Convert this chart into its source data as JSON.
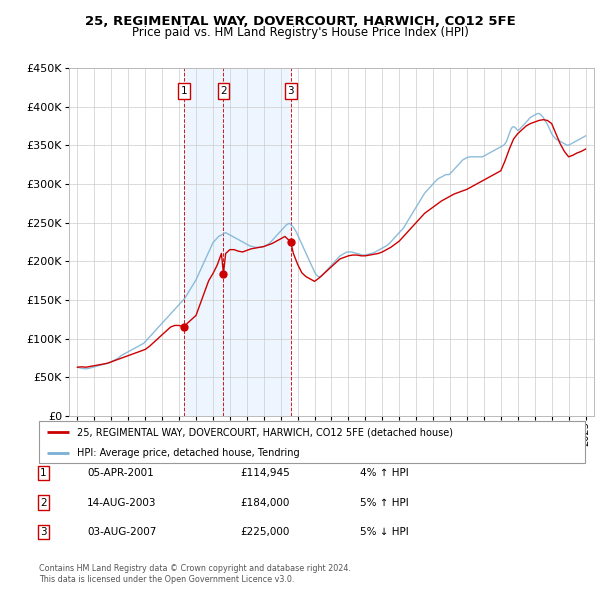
{
  "title": "25, REGIMENTAL WAY, DOVERCOURT, HARWICH, CO12 5FE",
  "subtitle": "Price paid vs. HM Land Registry's House Price Index (HPI)",
  "legend_line1": "25, REGIMENTAL WAY, DOVERCOURT, HARWICH, CO12 5FE (detached house)",
  "legend_line2": "HPI: Average price, detached house, Tendring",
  "transactions": [
    {
      "num": 1,
      "date": "05-APR-2001",
      "price": 114945,
      "change": "4% ↑ HPI",
      "year": 2001.27
    },
    {
      "num": 2,
      "date": "14-AUG-2003",
      "price": 184000,
      "change": "5% ↑ HPI",
      "year": 2003.62
    },
    {
      "num": 3,
      "date": "03-AUG-2007",
      "price": 225000,
      "change": "5% ↓ HPI",
      "year": 2007.59
    }
  ],
  "footer1": "Contains HM Land Registry data © Crown copyright and database right 2024.",
  "footer2": "This data is licensed under the Open Government Licence v3.0.",
  "red_color": "#cc0000",
  "blue_color": "#7ab0d4",
  "dot_color": "#cc0000",
  "shade_color": "#ddeeff",
  "background_color": "#ffffff",
  "grid_color": "#cccccc",
  "ylim": [
    0,
    450000
  ],
  "xlim": [
    1994.5,
    2025.5
  ],
  "hpi_data_years": [
    1995,
    1995.083,
    1995.167,
    1995.25,
    1995.333,
    1995.417,
    1995.5,
    1995.583,
    1995.667,
    1995.75,
    1995.833,
    1995.917,
    1996,
    1996.083,
    1996.167,
    1996.25,
    1996.333,
    1996.417,
    1996.5,
    1996.583,
    1996.667,
    1996.75,
    1996.833,
    1996.917,
    1997,
    1997.083,
    1997.167,
    1997.25,
    1997.333,
    1997.417,
    1997.5,
    1997.583,
    1997.667,
    1997.75,
    1997.833,
    1997.917,
    1998,
    1998.083,
    1998.167,
    1998.25,
    1998.333,
    1998.417,
    1998.5,
    1998.583,
    1998.667,
    1998.75,
    1998.833,
    1998.917,
    1999,
    1999.083,
    1999.167,
    1999.25,
    1999.333,
    1999.417,
    1999.5,
    1999.583,
    1999.667,
    1999.75,
    1999.833,
    1999.917,
    2000,
    2000.083,
    2000.167,
    2000.25,
    2000.333,
    2000.417,
    2000.5,
    2000.583,
    2000.667,
    2000.75,
    2000.833,
    2000.917,
    2001,
    2001.083,
    2001.167,
    2001.25,
    2001.333,
    2001.417,
    2001.5,
    2001.583,
    2001.667,
    2001.75,
    2001.833,
    2001.917,
    2002,
    2002.083,
    2002.167,
    2002.25,
    2002.333,
    2002.417,
    2002.5,
    2002.583,
    2002.667,
    2002.75,
    2002.833,
    2002.917,
    2003,
    2003.083,
    2003.167,
    2003.25,
    2003.333,
    2003.417,
    2003.5,
    2003.583,
    2003.667,
    2003.75,
    2003.833,
    2003.917,
    2004,
    2004.083,
    2004.167,
    2004.25,
    2004.333,
    2004.417,
    2004.5,
    2004.583,
    2004.667,
    2004.75,
    2004.833,
    2004.917,
    2005,
    2005.083,
    2005.167,
    2005.25,
    2005.333,
    2005.417,
    2005.5,
    2005.583,
    2005.667,
    2005.75,
    2005.833,
    2005.917,
    2006,
    2006.083,
    2006.167,
    2006.25,
    2006.333,
    2006.417,
    2006.5,
    2006.583,
    2006.667,
    2006.75,
    2006.833,
    2006.917,
    2007,
    2007.083,
    2007.167,
    2007.25,
    2007.333,
    2007.417,
    2007.5,
    2007.583,
    2007.667,
    2007.75,
    2007.833,
    2007.917,
    2008,
    2008.083,
    2008.167,
    2008.25,
    2008.333,
    2008.417,
    2008.5,
    2008.583,
    2008.667,
    2008.75,
    2008.833,
    2008.917,
    2009,
    2009.083,
    2009.167,
    2009.25,
    2009.333,
    2009.417,
    2009.5,
    2009.583,
    2009.667,
    2009.75,
    2009.833,
    2009.917,
    2010,
    2010.083,
    2010.167,
    2010.25,
    2010.333,
    2010.417,
    2010.5,
    2010.583,
    2010.667,
    2010.75,
    2010.833,
    2010.917,
    2011,
    2011.083,
    2011.167,
    2011.25,
    2011.333,
    2011.417,
    2011.5,
    2011.583,
    2011.667,
    2011.75,
    2011.833,
    2011.917,
    2012,
    2012.083,
    2012.167,
    2012.25,
    2012.333,
    2012.417,
    2012.5,
    2012.583,
    2012.667,
    2012.75,
    2012.833,
    2012.917,
    2013,
    2013.083,
    2013.167,
    2013.25,
    2013.333,
    2013.417,
    2013.5,
    2013.583,
    2013.667,
    2013.75,
    2013.833,
    2013.917,
    2014,
    2014.083,
    2014.167,
    2014.25,
    2014.333,
    2014.417,
    2014.5,
    2014.583,
    2014.667,
    2014.75,
    2014.833,
    2014.917,
    2015,
    2015.083,
    2015.167,
    2015.25,
    2015.333,
    2015.417,
    2015.5,
    2015.583,
    2015.667,
    2015.75,
    2015.833,
    2015.917,
    2016,
    2016.083,
    2016.167,
    2016.25,
    2016.333,
    2016.417,
    2016.5,
    2016.583,
    2016.667,
    2016.75,
    2016.833,
    2016.917,
    2017,
    2017.083,
    2017.167,
    2017.25,
    2017.333,
    2017.417,
    2017.5,
    2017.583,
    2017.667,
    2017.75,
    2017.833,
    2017.917,
    2018,
    2018.083,
    2018.167,
    2018.25,
    2018.333,
    2018.417,
    2018.5,
    2018.583,
    2018.667,
    2018.75,
    2018.833,
    2018.917,
    2019,
    2019.083,
    2019.167,
    2019.25,
    2019.333,
    2019.417,
    2019.5,
    2019.583,
    2019.667,
    2019.75,
    2019.833,
    2019.917,
    2020,
    2020.083,
    2020.167,
    2020.25,
    2020.333,
    2020.417,
    2020.5,
    2020.583,
    2020.667,
    2020.75,
    2020.833,
    2020.917,
    2021,
    2021.083,
    2021.167,
    2021.25,
    2021.333,
    2021.417,
    2021.5,
    2021.583,
    2021.667,
    2021.75,
    2021.833,
    2021.917,
    2022,
    2022.083,
    2022.167,
    2022.25,
    2022.333,
    2022.417,
    2022.5,
    2022.583,
    2022.667,
    2022.75,
    2022.833,
    2022.917,
    2023,
    2023.083,
    2023.167,
    2023.25,
    2023.333,
    2023.417,
    2023.5,
    2023.583,
    2023.667,
    2023.75,
    2023.833,
    2023.917,
    2024,
    2024.083,
    2024.167,
    2024.25,
    2024.333,
    2024.417,
    2024.5,
    2024.583,
    2024.667,
    2024.75,
    2024.833,
    2024.917,
    2025
  ],
  "hpi_data_values": [
    63000,
    62500,
    62000,
    61500,
    61200,
    61000,
    61000,
    61200,
    61500,
    62000,
    62500,
    63000,
    63500,
    64000,
    64500,
    65000,
    65500,
    66000,
    66500,
    67000,
    67500,
    68000,
    68500,
    69000,
    70000,
    71000,
    72000,
    73000,
    74000,
    75000,
    76500,
    78000,
    79000,
    80000,
    81000,
    82000,
    83000,
    84000,
    85000,
    86000,
    87000,
    88000,
    89000,
    90000,
    91000,
    92000,
    93000,
    94000,
    96000,
    98000,
    100000,
    102000,
    104000,
    106000,
    108000,
    110000,
    112000,
    114000,
    116000,
    118000,
    120000,
    122000,
    124000,
    126000,
    128000,
    130000,
    132000,
    134000,
    136000,
    138000,
    140000,
    142000,
    144000,
    146000,
    148000,
    150000,
    152000,
    155000,
    158000,
    161000,
    164000,
    167000,
    170000,
    173000,
    176000,
    180000,
    184000,
    188000,
    192000,
    196000,
    200000,
    204000,
    208000,
    212000,
    216000,
    220000,
    224000,
    226000,
    228000,
    230000,
    232000,
    233000,
    234000,
    235000,
    236000,
    237000,
    236000,
    235000,
    234000,
    233000,
    232000,
    231000,
    230000,
    229000,
    228000,
    227000,
    226000,
    225000,
    224000,
    223000,
    222000,
    221000,
    220000,
    219500,
    219000,
    218500,
    218000,
    218000,
    218000,
    218000,
    218000,
    218500,
    219000,
    220000,
    221000,
    222000,
    223000,
    225000,
    227000,
    229000,
    231000,
    233000,
    235000,
    237000,
    239000,
    241000,
    243000,
    245000,
    247000,
    248000,
    249000,
    248000,
    246000,
    244000,
    241000,
    238000,
    234000,
    230000,
    226000,
    222000,
    218000,
    214000,
    210000,
    206000,
    202000,
    198000,
    194000,
    190000,
    186000,
    183000,
    181000,
    180000,
    180000,
    181000,
    183000,
    185000,
    187000,
    189000,
    191000,
    193000,
    195000,
    197000,
    199000,
    201000,
    203000,
    205000,
    207000,
    208000,
    209000,
    210000,
    211000,
    212000,
    212000,
    212000,
    212000,
    211500,
    211000,
    210500,
    210000,
    209500,
    209000,
    208500,
    208000,
    208000,
    208000,
    208500,
    209000,
    209500,
    210000,
    210500,
    211000,
    212000,
    213000,
    214000,
    215000,
    216000,
    217000,
    218000,
    219000,
    220000,
    221500,
    223000,
    225000,
    227000,
    229000,
    231000,
    233000,
    235000,
    237000,
    239000,
    241000,
    243000,
    246000,
    249000,
    252000,
    255000,
    258000,
    261000,
    264000,
    267000,
    270000,
    273000,
    276000,
    279000,
    282000,
    285000,
    288000,
    290000,
    292000,
    294000,
    296000,
    298000,
    300000,
    302000,
    304000,
    306000,
    307000,
    308000,
    309000,
    310000,
    311000,
    312000,
    312000,
    312000,
    313000,
    315000,
    317000,
    319000,
    321000,
    323000,
    325000,
    327000,
    329000,
    331000,
    332000,
    333000,
    334000,
    334500,
    335000,
    335000,
    335000,
    335000,
    335000,
    335000,
    335000,
    335000,
    335000,
    335000,
    336000,
    337000,
    338000,
    339000,
    340000,
    341000,
    342000,
    343000,
    344000,
    345000,
    346000,
    347000,
    348000,
    349000,
    350000,
    352000,
    355000,
    360000,
    365000,
    370000,
    373000,
    374000,
    373000,
    371000,
    369000,
    370000,
    372000,
    374000,
    376000,
    378000,
    380000,
    382000,
    384000,
    386000,
    387000,
    388000,
    389000,
    390000,
    391000,
    391000,
    390000,
    388000,
    386000,
    383000,
    380000,
    377000,
    373000,
    369000,
    365000,
    362000,
    360000,
    358000,
    357000,
    356000,
    355000,
    354000,
    353000,
    352000,
    351000,
    350000,
    350000,
    351000,
    352000,
    353000,
    354000,
    355000,
    356000,
    357000,
    358000,
    359000,
    360000,
    361000,
    362000
  ],
  "red_data_years": [
    1995,
    1995.25,
    1995.5,
    1995.75,
    1996,
    1996.25,
    1996.5,
    1996.75,
    1997,
    1997.25,
    1997.5,
    1997.75,
    1998,
    1998.25,
    1998.5,
    1998.75,
    1999,
    1999.25,
    1999.5,
    1999.75,
    2000,
    2000.25,
    2000.5,
    2000.75,
    2001,
    2001.27,
    2001.5,
    2001.75,
    2002,
    2002.25,
    2002.5,
    2002.75,
    2003,
    2003.25,
    2003.5,
    2003.62,
    2003.75,
    2004,
    2004.25,
    2004.5,
    2004.75,
    2005,
    2005.25,
    2005.5,
    2005.75,
    2006,
    2006.25,
    2006.5,
    2006.75,
    2007,
    2007.25,
    2007.59,
    2007.75,
    2008,
    2008.25,
    2008.5,
    2008.75,
    2009,
    2009.25,
    2009.5,
    2009.75,
    2010,
    2010.25,
    2010.5,
    2010.75,
    2011,
    2011.25,
    2011.5,
    2011.75,
    2012,
    2012.25,
    2012.5,
    2012.75,
    2013,
    2013.25,
    2013.5,
    2013.75,
    2014,
    2014.25,
    2014.5,
    2014.75,
    2015,
    2015.25,
    2015.5,
    2015.75,
    2016,
    2016.25,
    2016.5,
    2016.75,
    2017,
    2017.25,
    2017.5,
    2017.75,
    2018,
    2018.25,
    2018.5,
    2018.75,
    2019,
    2019.25,
    2019.5,
    2019.75,
    2020,
    2020.25,
    2020.5,
    2020.75,
    2021,
    2021.25,
    2021.5,
    2021.75,
    2022,
    2022.25,
    2022.5,
    2022.75,
    2023,
    2023.25,
    2023.5,
    2023.75,
    2024,
    2024.25,
    2024.5,
    2024.75,
    2025
  ],
  "red_data_values": [
    63000,
    63500,
    63000,
    64000,
    65000,
    66000,
    67000,
    68000,
    70000,
    72000,
    74000,
    76000,
    78000,
    80000,
    82000,
    84000,
    86000,
    90000,
    95000,
    100000,
    105000,
    110000,
    115000,
    117000,
    117000,
    114945,
    120000,
    125000,
    130000,
    145000,
    160000,
    175000,
    184000,
    195000,
    210000,
    184000,
    210000,
    215000,
    215000,
    213000,
    212000,
    214000,
    216000,
    217000,
    218000,
    219000,
    221000,
    223000,
    226000,
    229000,
    232000,
    225000,
    210000,
    196000,
    185000,
    180000,
    177000,
    174000,
    178000,
    183000,
    188000,
    193000,
    198000,
    203000,
    205000,
    207000,
    208000,
    208000,
    207000,
    207000,
    208000,
    209000,
    210000,
    212000,
    215000,
    218000,
    222000,
    226000,
    232000,
    238000,
    244000,
    250000,
    256000,
    262000,
    266000,
    270000,
    274000,
    278000,
    281000,
    284000,
    287000,
    289000,
    291000,
    293000,
    296000,
    299000,
    302000,
    305000,
    308000,
    311000,
    314000,
    317000,
    330000,
    345000,
    358000,
    365000,
    370000,
    375000,
    378000,
    380000,
    382000,
    383000,
    382000,
    378000,
    365000,
    352000,
    342000,
    335000,
    337000,
    340000,
    342000,
    345000
  ]
}
